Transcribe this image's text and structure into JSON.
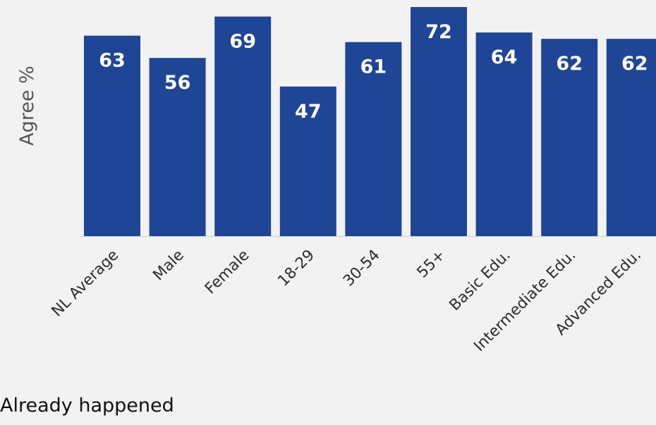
{
  "chart_data": {
    "type": "bar",
    "ylabel": "Agree %",
    "categories": [
      "NL Average",
      "Male",
      "Female",
      "18-29",
      "30-54",
      "55+",
      "Basic Edu.",
      "Intermediate Edu.",
      "Advanced Edu."
    ],
    "values": [
      63,
      56,
      69,
      47,
      61,
      72,
      64,
      62,
      62
    ],
    "ylim": [
      0,
      72
    ],
    "grid": false,
    "data_labels": true,
    "bar_color": "#1f4596"
  },
  "footer": {
    "text": "Already happened"
  },
  "colors": {
    "background": "#f2f2f2",
    "bar": "#1f4596",
    "data_label": "#ffffff"
  }
}
